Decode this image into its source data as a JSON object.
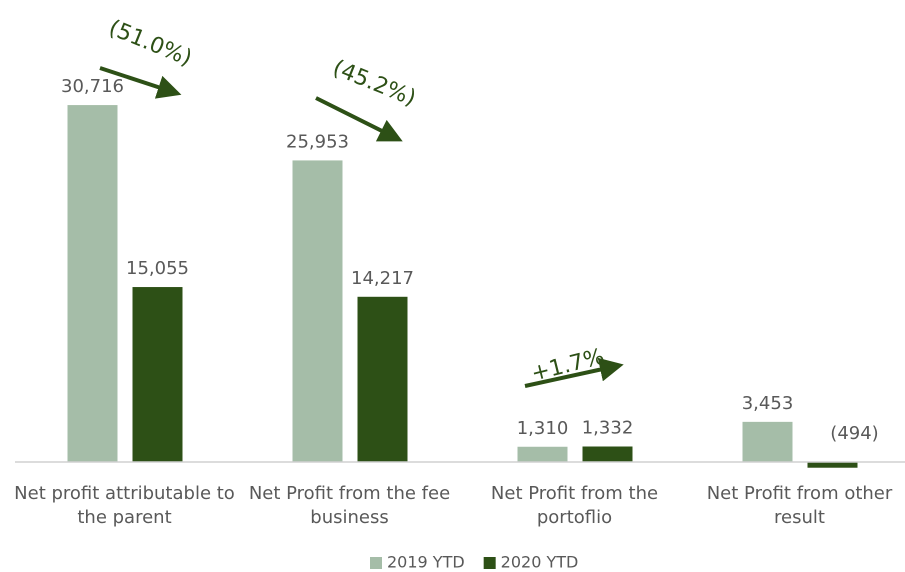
{
  "chart_data": {
    "type": "bar",
    "categories": [
      "Net profit attributable to the parent",
      "Net Profit from the fee business",
      "Net Profit from the portoflio",
      "Net Profit from other result"
    ],
    "series": [
      {
        "name": "2019 YTD",
        "color": "#a5bda8",
        "values": [
          30716,
          25953,
          1310,
          3453
        ],
        "value_labels": [
          "30,716",
          "25,953",
          "1,310",
          "3,453"
        ]
      },
      {
        "name": "2020 YTD",
        "color": "#2d5016",
        "values": [
          15055,
          14217,
          1332,
          -494
        ],
        "value_labels": [
          "15,055",
          "14,217",
          "1,332",
          "(494)"
        ]
      }
    ],
    "ylim": [
      -1000,
      35000
    ],
    "annotations": [
      "(51.0%)",
      "(45.2%)",
      "+1.7%"
    ],
    "legend": "bottom"
  }
}
